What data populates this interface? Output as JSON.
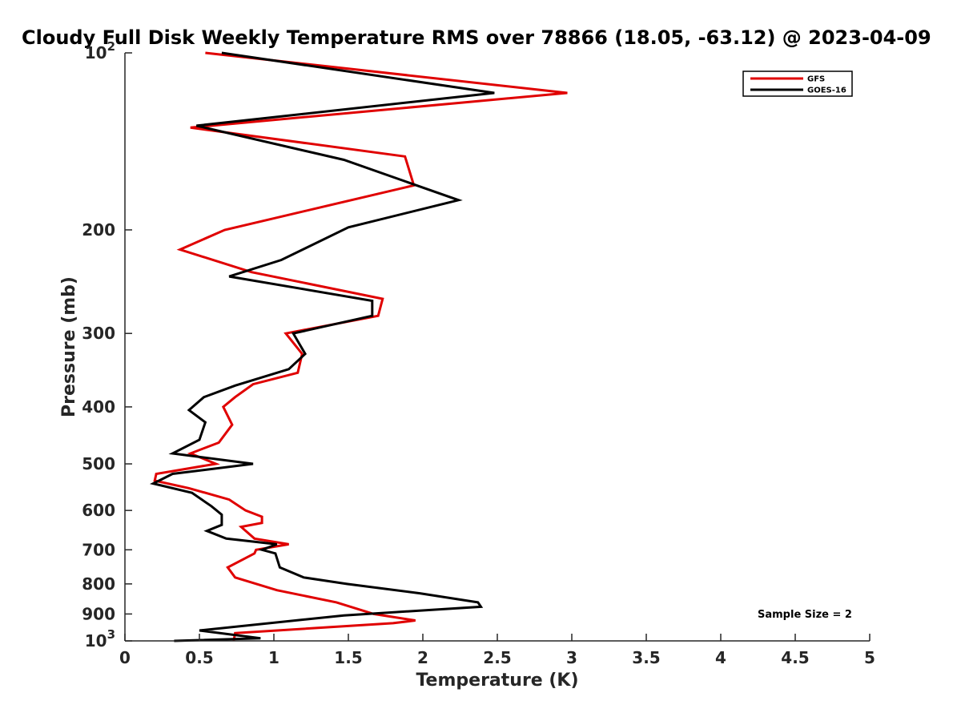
{
  "chart_data": {
    "type": "line",
    "title": "Cloudy Full Disk Weekly Temperature RMS over 78866 (18.05, -63.12) @ 2023-04-09",
    "xlabel": "Temperature (K)",
    "ylabel": "Pressure (mb)",
    "xlim": [
      0,
      5
    ],
    "ylim": [
      1000,
      100
    ],
    "yscale": "log",
    "x_ticks": [
      "0",
      "0.5",
      "1",
      "1.5",
      "2",
      "2.5",
      "3",
      "3.5",
      "4",
      "4.5",
      "5"
    ],
    "y_ticks": [
      {
        "label": "10",
        "sup": "2",
        "value": 100
      },
      {
        "label": "200",
        "sup": "",
        "value": 200
      },
      {
        "label": "300",
        "sup": "",
        "value": 300
      },
      {
        "label": "400",
        "sup": "",
        "value": 400
      },
      {
        "label": "500",
        "sup": "",
        "value": 500
      },
      {
        "label": "600",
        "sup": "",
        "value": 600
      },
      {
        "label": "700",
        "sup": "",
        "value": 700
      },
      {
        "label": "800",
        "sup": "",
        "value": 800
      },
      {
        "label": "900",
        "sup": "",
        "value": 900
      },
      {
        "label": "10",
        "sup": "3",
        "value": 1000
      }
    ],
    "grid": false,
    "legend_position": "top-right",
    "annotation": "Sample Size = 2",
    "series": [
      {
        "name": "GFS",
        "color": "#e00000",
        "points": [
          [
            0.54,
            100
          ],
          [
            2.97,
            117
          ],
          [
            0.44,
            134
          ],
          [
            1.88,
            150
          ],
          [
            1.94,
            168
          ],
          [
            0.67,
            200
          ],
          [
            0.37,
            216
          ],
          [
            0.85,
            236
          ],
          [
            1.73,
            262
          ],
          [
            1.7,
            280
          ],
          [
            1.08,
            300
          ],
          [
            1.19,
            325
          ],
          [
            1.16,
            350
          ],
          [
            0.86,
            366
          ],
          [
            0.74,
            385
          ],
          [
            0.66,
            400
          ],
          [
            0.72,
            429
          ],
          [
            0.63,
            460
          ],
          [
            0.44,
            480
          ],
          [
            0.61,
            500
          ],
          [
            0.21,
            520
          ],
          [
            0.2,
            534
          ],
          [
            0.43,
            550
          ],
          [
            0.7,
            575
          ],
          [
            0.81,
            600
          ],
          [
            0.92,
            615
          ],
          [
            0.92,
            630
          ],
          [
            0.78,
            640
          ],
          [
            0.87,
            670
          ],
          [
            1.1,
            685
          ],
          [
            0.88,
            700
          ],
          [
            0.87,
            710
          ],
          [
            0.69,
            750
          ],
          [
            0.74,
            780
          ],
          [
            1.02,
            820
          ],
          [
            1.42,
            860
          ],
          [
            1.67,
            900
          ],
          [
            1.95,
            923
          ],
          [
            1.8,
            933
          ],
          [
            0.74,
            970
          ],
          [
            0.73,
            1000
          ]
        ]
      },
      {
        "name": "GOES-16",
        "color": "#000000",
        "points": [
          [
            0.65,
            100
          ],
          [
            2.48,
            117
          ],
          [
            0.48,
            133
          ],
          [
            1.47,
            152
          ],
          [
            2.24,
            178
          ],
          [
            1.5,
            198
          ],
          [
            1.05,
            225
          ],
          [
            0.7,
            240
          ],
          [
            1.66,
            264
          ],
          [
            1.66,
            280
          ],
          [
            1.13,
            300
          ],
          [
            1.21,
            325
          ],
          [
            1.1,
            345
          ],
          [
            0.74,
            368
          ],
          [
            0.53,
            385
          ],
          [
            0.43,
            405
          ],
          [
            0.54,
            425
          ],
          [
            0.5,
            455
          ],
          [
            0.32,
            480
          ],
          [
            0.86,
            500
          ],
          [
            0.32,
            520
          ],
          [
            0.19,
            540
          ],
          [
            0.45,
            560
          ],
          [
            0.58,
            590
          ],
          [
            0.65,
            610
          ],
          [
            0.65,
            635
          ],
          [
            0.55,
            650
          ],
          [
            0.68,
            670
          ],
          [
            1.02,
            685
          ],
          [
            0.92,
            700
          ],
          [
            1.01,
            710
          ],
          [
            1.04,
            750
          ],
          [
            1.2,
            780
          ],
          [
            1.49,
            800
          ],
          [
            1.98,
            830
          ],
          [
            2.37,
            860
          ],
          [
            2.39,
            875
          ],
          [
            1.47,
            905
          ],
          [
            0.5,
            960
          ],
          [
            0.91,
            990
          ],
          [
            0.33,
            1000
          ]
        ]
      }
    ]
  }
}
